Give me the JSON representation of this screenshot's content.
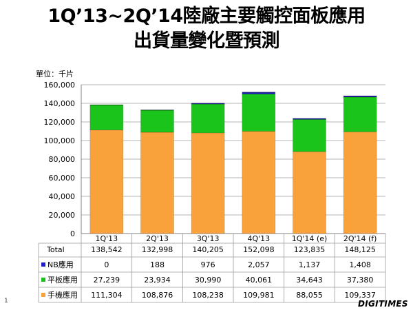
{
  "title_line1": "1Q’13~2Q’14陸廠主要觸控面板應用",
  "title_line2": "出貨量變化暨預測",
  "unit_label": "單位：千片",
  "page_number": "1",
  "logo_text": "DIGITIMES",
  "chart_data": {
    "type": "bar",
    "stacked": true,
    "categories": [
      "1Q'13",
      "2Q'13",
      "3Q'13",
      "4Q'13",
      "1Q'14 (e)",
      "2Q'14 (f)"
    ],
    "series": [
      {
        "name": "手機應用",
        "color": "#F9A13A",
        "values": [
          111304,
          108876,
          108238,
          109981,
          88055,
          109337
        ]
      },
      {
        "name": "平板應用",
        "color": "#1AC41A",
        "values": [
          27239,
          23934,
          30990,
          40061,
          34643,
          37380
        ]
      },
      {
        "name": "NB應用",
        "color": "#1F1FC4",
        "values": [
          0,
          188,
          976,
          2057,
          1137,
          1408
        ]
      }
    ],
    "total_label": "Total",
    "totals": [
      138542,
      132998,
      140205,
      152098,
      123835,
      148125
    ],
    "ylim": [
      0,
      160000
    ],
    "yticks": [
      0,
      20000,
      40000,
      60000,
      80000,
      100000,
      120000,
      140000,
      160000
    ],
    "grid": true,
    "legend": "data-table"
  }
}
